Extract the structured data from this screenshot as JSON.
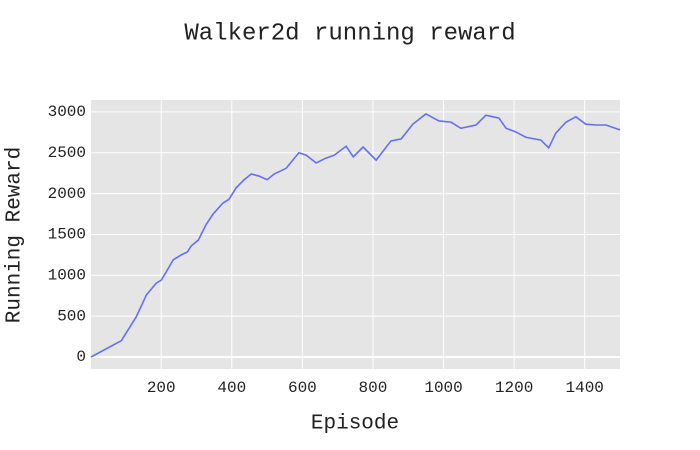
{
  "chart_data": {
    "type": "line",
    "title": "Walker2d running reward",
    "x_label": "Episode",
    "y_label": "Running Reward",
    "x": [
      1,
      87,
      100,
      129,
      158,
      186,
      200,
      214,
      234,
      257,
      274,
      285,
      305,
      327,
      347,
      375,
      392,
      412,
      435,
      455,
      477,
      500,
      520,
      554,
      590,
      611,
      639,
      667,
      690,
      724,
      744,
      772,
      809,
      851,
      880,
      913,
      950,
      987,
      1021,
      1049,
      1092,
      1120,
      1157,
      1177,
      1205,
      1233,
      1276,
      1298,
      1318,
      1347,
      1375,
      1403,
      1432,
      1460,
      1500
    ],
    "series": [
      {
        "name": "Running Reward",
        "color": "#636efa",
        "values": [
          0,
          200,
          290,
          490,
          760,
          905,
          940,
          1040,
          1190,
          1250,
          1285,
          1360,
          1430,
          1620,
          1750,
          1885,
          1930,
          2070,
          2170,
          2240,
          2215,
          2170,
          2240,
          2310,
          2500,
          2470,
          2375,
          2435,
          2470,
          2580,
          2450,
          2570,
          2410,
          2645,
          2670,
          2850,
          2975,
          2890,
          2875,
          2800,
          2840,
          2960,
          2925,
          2800,
          2755,
          2690,
          2655,
          2560,
          2740,
          2875,
          2940,
          2850,
          2840,
          2840,
          2780
        ]
      }
    ],
    "xlim": [
      1,
      1500
    ],
    "ylim": [
      -147,
      3146
    ],
    "xticks": [
      200,
      400,
      600,
      800,
      1000,
      1200,
      1400
    ],
    "yticks": [
      0,
      500,
      1000,
      1500,
      2000,
      2500,
      3000
    ],
    "grid": true
  }
}
